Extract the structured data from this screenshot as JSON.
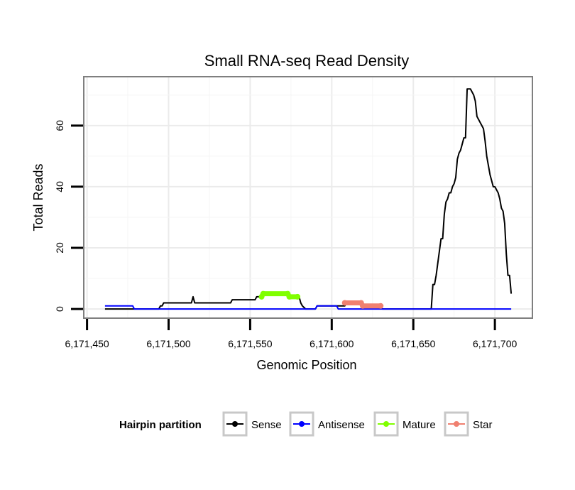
{
  "chart_data": {
    "type": "line",
    "title": "Small RNA-seq Read Density",
    "xlabel": "Genomic Position",
    "ylabel": "Total Reads",
    "xlim": [
      6171448,
      6171723
    ],
    "ylim": [
      -3,
      76
    ],
    "x_ticks": [
      6171450,
      6171500,
      6171550,
      6171600,
      6171650,
      6171700
    ],
    "x_tick_labels": [
      "6,171,450",
      "6,171,500",
      "6,171,550",
      "6,171,600",
      "6,171,650",
      "6,171,700"
    ],
    "y_ticks": [
      0,
      20,
      40,
      60
    ],
    "y_tick_labels": [
      "0",
      "20",
      "40",
      "60"
    ],
    "grid": true,
    "legend": {
      "title": "Hairpin partition",
      "position": "bottom",
      "entries": [
        "Sense",
        "Antisense",
        "Mature",
        "Star"
      ]
    },
    "series": [
      {
        "name": "Sense",
        "color": "#000000",
        "style": "line",
        "points": [
          [
            6171461,
            0
          ],
          [
            6171478,
            0
          ],
          [
            6171479,
            0
          ],
          [
            6171494,
            0
          ],
          [
            6171495,
            1
          ],
          [
            6171496,
            1
          ],
          [
            6171497,
            2
          ],
          [
            6171514,
            2
          ],
          [
            6171515,
            4
          ],
          [
            6171516,
            2
          ],
          [
            6171538,
            2
          ],
          [
            6171539,
            3
          ],
          [
            6171553,
            3
          ],
          [
            6171554,
            4
          ],
          [
            6171557,
            4
          ],
          [
            6171558,
            5
          ],
          [
            6171573,
            5
          ],
          [
            6171574,
            4
          ],
          [
            6171580,
            4
          ],
          [
            6171581,
            2
          ],
          [
            6171582,
            1
          ],
          [
            6171584,
            0
          ],
          [
            6171590,
            0
          ],
          [
            6171591,
            1
          ],
          [
            6171608,
            1
          ],
          [
            6171609,
            2
          ],
          [
            6171619,
            2
          ],
          [
            6171620,
            1
          ],
          [
            6171630,
            1
          ],
          [
            6171631,
            0
          ],
          [
            6171661,
            0
          ],
          [
            6171662,
            8
          ],
          [
            6171663,
            8
          ],
          [
            6171664,
            11
          ],
          [
            6171665,
            15
          ],
          [
            6171666,
            19
          ],
          [
            6171667,
            23
          ],
          [
            6171668,
            23
          ],
          [
            6171669,
            31
          ],
          [
            6171670,
            35
          ],
          [
            6171671,
            36
          ],
          [
            6171672,
            38
          ],
          [
            6171673,
            38
          ],
          [
            6171674,
            40
          ],
          [
            6171675,
            41
          ],
          [
            6171676,
            43
          ],
          [
            6171677,
            49
          ],
          [
            6171678,
            51
          ],
          [
            6171679,
            52
          ],
          [
            6171680,
            54
          ],
          [
            6171681,
            56
          ],
          [
            6171682,
            56
          ],
          [
            6171683,
            72
          ],
          [
            6171684,
            72
          ],
          [
            6171685,
            72
          ],
          [
            6171686,
            71
          ],
          [
            6171687,
            70
          ],
          [
            6171688,
            68
          ],
          [
            6171689,
            63
          ],
          [
            6171690,
            62
          ],
          [
            6171691,
            61
          ],
          [
            6171692,
            60
          ],
          [
            6171693,
            59
          ],
          [
            6171694,
            55
          ],
          [
            6171695,
            50
          ],
          [
            6171696,
            47
          ],
          [
            6171697,
            44
          ],
          [
            6171698,
            42
          ],
          [
            6171699,
            40
          ],
          [
            6171700,
            40
          ],
          [
            6171701,
            39
          ],
          [
            6171702,
            38
          ],
          [
            6171703,
            36
          ],
          [
            6171704,
            33
          ],
          [
            6171705,
            32
          ],
          [
            6171706,
            28
          ],
          [
            6171707,
            18
          ],
          [
            6171708,
            11
          ],
          [
            6171709,
            11
          ],
          [
            6171710,
            5
          ]
        ]
      },
      {
        "name": "Antisense",
        "color": "#0000ff",
        "style": "line",
        "points": [
          [
            6171461,
            1
          ],
          [
            6171478,
            1
          ],
          [
            6171479,
            0
          ],
          [
            6171590,
            0
          ],
          [
            6171591,
            1
          ],
          [
            6171603,
            1
          ],
          [
            6171604,
            0
          ],
          [
            6171710,
            0
          ]
        ]
      },
      {
        "name": "Mature",
        "color": "#80ff00",
        "style": "thick",
        "points": [
          [
            6171557,
            4
          ],
          [
            6171558,
            5
          ],
          [
            6171573,
            5
          ],
          [
            6171574,
            4
          ],
          [
            6171579,
            4
          ]
        ]
      },
      {
        "name": "Star",
        "color": "#f08070",
        "style": "thick",
        "points": [
          [
            6171608,
            2
          ],
          [
            6171618,
            2
          ],
          [
            6171619,
            1
          ],
          [
            6171630,
            1
          ]
        ]
      }
    ]
  }
}
